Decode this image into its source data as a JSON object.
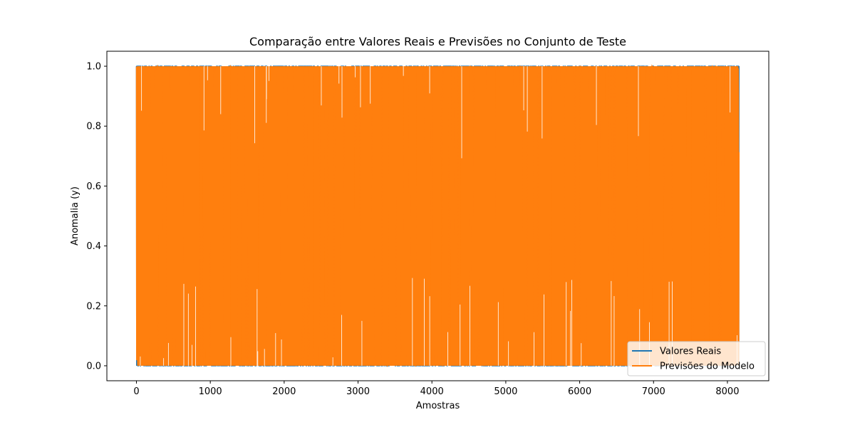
{
  "chart_data": {
    "type": "line",
    "title": "Comparação entre Valores Reais e Previsões no Conjunto de Teste",
    "xlabel": "Amostras",
    "ylabel": "Anomalia (y)",
    "xlim": [
      -400,
      8560
    ],
    "ylim": [
      -0.05,
      1.05
    ],
    "x_ticks": [
      0,
      1000,
      2000,
      3000,
      4000,
      5000,
      6000,
      7000,
      8000
    ],
    "x_tick_labels": [
      "0",
      "1000",
      "2000",
      "3000",
      "4000",
      "5000",
      "6000",
      "7000",
      "8000"
    ],
    "y_ticks": [
      0.0,
      0.2,
      0.4,
      0.6,
      0.8,
      1.0
    ],
    "y_tick_labels": [
      "0.0",
      "0.2",
      "0.4",
      "0.6",
      "0.8",
      "1.0"
    ],
    "n_samples": 8160,
    "x_range": [
      0,
      8159
    ],
    "y_range": [
      0.0,
      1.0
    ],
    "legend_position": "lower-right",
    "grid": false,
    "series": [
      {
        "name": "Valores Reais",
        "color": "#1f77b4",
        "description": "binary labels (0/1), fully overdrawn by predictions"
      },
      {
        "name": "Previsões do Modelo",
        "color": "#ff7f0e",
        "description": "predicted probabilities oscillating between ~0.0 and ~1.0 across all samples"
      }
    ]
  }
}
